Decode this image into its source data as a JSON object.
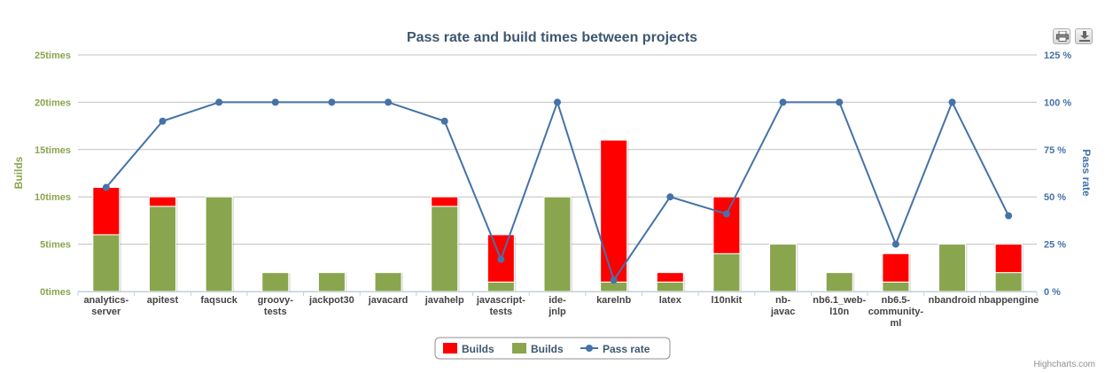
{
  "chart_data": {
    "type": "bar",
    "title": "Pass rate and build times between projects",
    "categories": [
      "analytics-server",
      "apitest",
      "faqsuck",
      "groovy-tests",
      "jackpot30",
      "javacard",
      "javahelp",
      "javascript-tests",
      "ide-jnlp",
      "karelnb",
      "latex",
      "l10nkit",
      "nb-javac",
      "nb6.1_web-l10n",
      "nb6.5-community-ml",
      "nbandroid",
      "nbappengine"
    ],
    "category_lines": [
      [
        "analytics-",
        "server"
      ],
      [
        "apitest"
      ],
      [
        "faqsuck"
      ],
      [
        "groovy-",
        "tests"
      ],
      [
        "jackpot30"
      ],
      [
        "javacard"
      ],
      [
        "javahelp"
      ],
      [
        "javascript-",
        "tests"
      ],
      [
        "ide-",
        "jnlp"
      ],
      [
        "karelnb"
      ],
      [
        "latex"
      ],
      [
        "l10nkit"
      ],
      [
        "nb-",
        "javac"
      ],
      [
        "nb6.1_web-",
        "l10n"
      ],
      [
        "nb6.5-",
        "community-",
        "ml"
      ],
      [
        "nbandroid"
      ],
      [
        "nbappengine"
      ]
    ],
    "series": [
      {
        "name": "Builds",
        "kind": "stacked-bar",
        "color": "#ff0000",
        "axis": "left",
        "values": [
          5,
          1,
          0,
          0,
          0,
          0,
          1,
          5,
          0,
          15,
          1,
          6,
          0,
          0,
          3,
          0,
          3
        ]
      },
      {
        "name": "Builds",
        "kind": "stacked-bar",
        "color": "#89a54e",
        "axis": "left",
        "values": [
          6,
          9,
          10,
          2,
          2,
          2,
          9,
          1,
          10,
          1,
          1,
          4,
          5,
          2,
          1,
          5,
          2
        ]
      },
      {
        "name": "Pass rate",
        "kind": "line",
        "color": "#4572a7",
        "axis": "right",
        "values": [
          55,
          90,
          100,
          100,
          100,
          100,
          90,
          17,
          100,
          6,
          50,
          41,
          100,
          100,
          25,
          100,
          40
        ]
      }
    ],
    "y_left": {
      "label": "Builds",
      "min": 0,
      "max": 25,
      "ticks": [
        "0times",
        "5times",
        "10times",
        "15times",
        "20times",
        "25times"
      ]
    },
    "y_right": {
      "label": "Pass rate",
      "min": 0,
      "max": 125,
      "ticks": [
        "0 %",
        "25 %",
        "50 %",
        "75 %",
        "100 %",
        "125 %"
      ]
    },
    "grid": true,
    "legend_position": "bottom-center",
    "credits": "Highcharts.com",
    "colors": {
      "title": "#3e576f",
      "left_axis": "#89a54e",
      "right_axis": "#4572a7",
      "grid": "#c0c0c0"
    },
    "export_buttons": [
      {
        "icon": "print-icon"
      },
      {
        "icon": "download-icon"
      }
    ]
  }
}
